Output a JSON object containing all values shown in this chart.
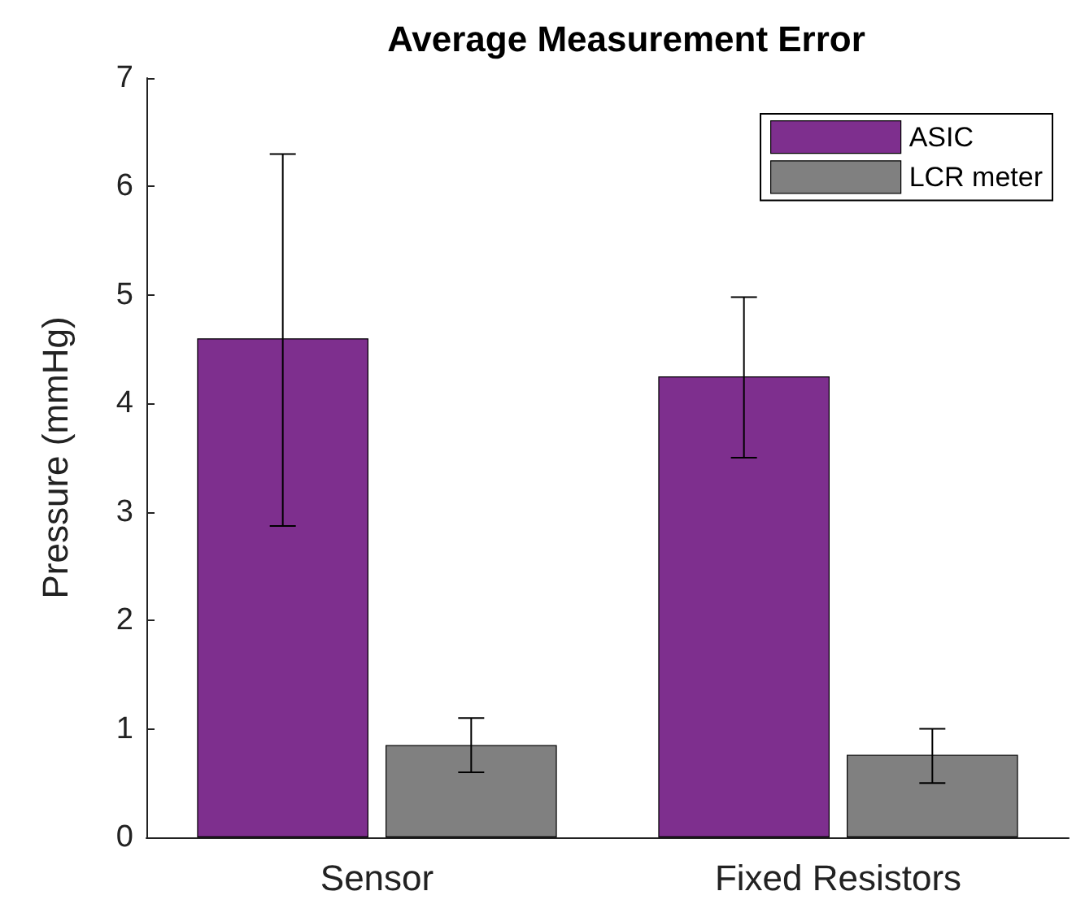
{
  "chart_data": {
    "type": "bar",
    "title": "Average Measurement Error",
    "ylabel": "Pressure (mmHg)",
    "categories": [
      "Sensor",
      "Fixed Resistors"
    ],
    "series": [
      {
        "name": "ASIC",
        "color": "#7e2f8e",
        "values": [
          4.6,
          4.25
        ],
        "errors": [
          [
            2.87,
            6.3
          ],
          [
            3.5,
            4.98
          ]
        ]
      },
      {
        "name": "LCR meter",
        "color": "#808080",
        "values": [
          0.85,
          0.76
        ],
        "errors": [
          [
            0.6,
            1.1
          ],
          [
            0.5,
            1.0
          ]
        ]
      }
    ],
    "ylim": [
      0,
      7
    ],
    "yticks": [
      0,
      1,
      2,
      3,
      4,
      5,
      6,
      7
    ],
    "grid": false,
    "legend": "top right"
  }
}
